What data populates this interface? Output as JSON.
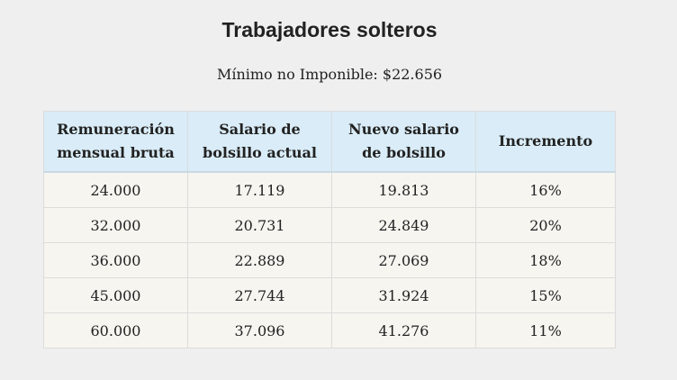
{
  "header": {
    "title": "Trabajadores solteros",
    "subtitle": "Mínimo no Imponible: $22.656"
  },
  "table": {
    "columns": [
      "Remuneración mensual bruta",
      "Salario de bolsillo actual",
      "Nuevo salario de bolsillo",
      "Incremento"
    ],
    "rows": [
      [
        "24.000",
        "17.119",
        "19.813",
        "16%"
      ],
      [
        "32.000",
        "20.731",
        "24.849",
        "20%"
      ],
      [
        "36.000",
        "22.889",
        "27.069",
        "18%"
      ],
      [
        "45.000",
        "27.744",
        "31.924",
        "15%"
      ],
      [
        "60.000",
        "37.096",
        "41.276",
        "11%"
      ]
    ]
  }
}
